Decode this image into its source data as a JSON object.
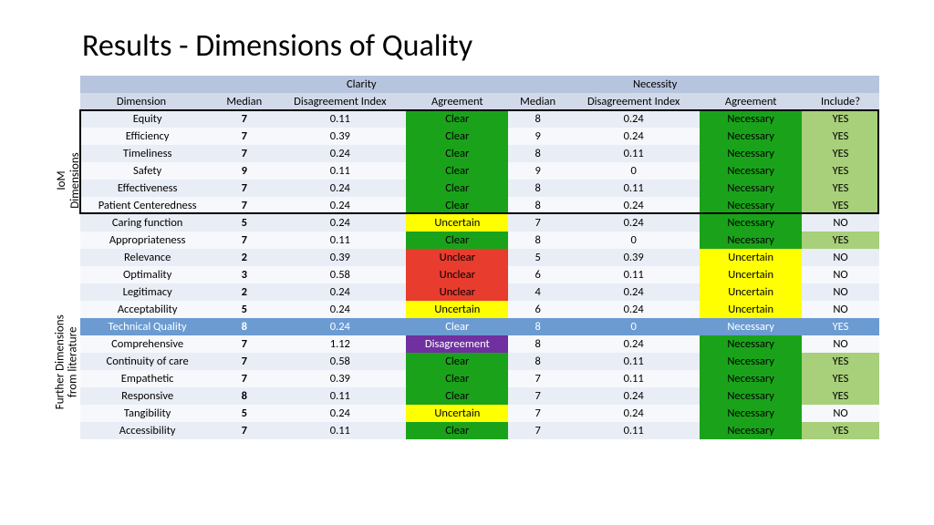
{
  "title": "Results - Dimensions of Quality",
  "side_labels": {
    "iom": "IoM\nDimensions",
    "further": "Further Dimensions\nfrom literature"
  },
  "headers": {
    "dimension": "Dimension",
    "clarity": "Clarity",
    "necessity": "Necessity",
    "median": "Median",
    "disagreement_index": "Disagreement Index",
    "agreement": "Agreement",
    "include": "Include?"
  },
  "status_labels": {
    "Clear": "Clear",
    "Unclear": "Unclear",
    "Uncertain": "Uncertain",
    "Disagreement": "Disagreement",
    "Necessary": "Necessary"
  },
  "colors": {
    "header_group_bg": "#b7c4de",
    "header_col_bg": "#d2daea",
    "row_even_bg": "#e9edf5",
    "row_odd_bg": "#f6f8fc",
    "clear_bg": "#1aa31a",
    "necessary_bg": "#1aa31a",
    "uncertain_bg": "#ffff00",
    "unclear_bg": "#e83c2e",
    "disagreement_bg": "#7030a0",
    "yes_bg": "#a8cf7a",
    "highlight_row_bg": "#6b9bd1"
  },
  "rows": [
    {
      "group": "iom",
      "dim": "Equity",
      "c_med": "7",
      "c_di": "0.11",
      "c_agr": "Clear",
      "n_med": "8",
      "n_di": "0.24",
      "n_agr": "Necessary",
      "inc": "YES"
    },
    {
      "group": "iom",
      "dim": "Efficiency",
      "c_med": "7",
      "c_di": "0.39",
      "c_agr": "Clear",
      "n_med": "9",
      "n_di": "0.24",
      "n_agr": "Necessary",
      "inc": "YES"
    },
    {
      "group": "iom",
      "dim": "Timeliness",
      "c_med": "7",
      "c_di": "0.24",
      "c_agr": "Clear",
      "n_med": "8",
      "n_di": "0.11",
      "n_agr": "Necessary",
      "inc": "YES"
    },
    {
      "group": "iom",
      "dim": "Safety",
      "c_med": "9",
      "c_di": "0.11",
      "c_agr": "Clear",
      "n_med": "9",
      "n_di": "0",
      "n_agr": "Necessary",
      "inc": "YES"
    },
    {
      "group": "iom",
      "dim": "Effectiveness",
      "c_med": "7",
      "c_di": "0.24",
      "c_agr": "Clear",
      "n_med": "8",
      "n_di": "0.11",
      "n_agr": "Necessary",
      "inc": "YES"
    },
    {
      "group": "iom",
      "dim": "Patient Centeredness",
      "c_med": "7",
      "c_di": "0.24",
      "c_agr": "Clear",
      "n_med": "8",
      "n_di": "0.24",
      "n_agr": "Necessary",
      "inc": "YES"
    },
    {
      "group": "further",
      "dim": "Caring function",
      "c_med": "5",
      "c_di": "0.24",
      "c_agr": "Uncertain",
      "n_med": "7",
      "n_di": "0.24",
      "n_agr": "Necessary",
      "inc": "NO"
    },
    {
      "group": "further",
      "dim": "Appropriateness",
      "c_med": "7",
      "c_di": "0.11",
      "c_agr": "Clear",
      "n_med": "8",
      "n_di": "0",
      "n_agr": "Necessary",
      "inc": "YES"
    },
    {
      "group": "further",
      "dim": "Relevance",
      "c_med": "2",
      "c_di": "0.39",
      "c_agr": "Unclear",
      "n_med": "5",
      "n_di": "0.39",
      "n_agr": "Uncertain",
      "inc": "NO"
    },
    {
      "group": "further",
      "dim": "Optimality",
      "c_med": "3",
      "c_di": "0.58",
      "c_agr": "Unclear",
      "n_med": "6",
      "n_di": "0.11",
      "n_agr": "Uncertain",
      "inc": "NO"
    },
    {
      "group": "further",
      "dim": "Legitimacy",
      "c_med": "2",
      "c_di": "0.24",
      "c_agr": "Unclear",
      "n_med": "4",
      "n_di": "0.24",
      "n_agr": "Uncertain",
      "inc": "NO"
    },
    {
      "group": "further",
      "dim": "Acceptability",
      "c_med": "5",
      "c_di": "0.24",
      "c_agr": "Uncertain",
      "n_med": "6",
      "n_di": "0.24",
      "n_agr": "Uncertain",
      "inc": "NO"
    },
    {
      "group": "further",
      "dim": "Technical Quality",
      "c_med": "8",
      "c_di": "0.24",
      "c_agr": "Clear",
      "n_med": "8",
      "n_di": "0",
      "n_agr": "Necessary",
      "inc": "YES",
      "hl": true
    },
    {
      "group": "further",
      "dim": "Comprehensive",
      "c_med": "7",
      "c_di": "1.12",
      "c_agr": "Disagreement",
      "n_med": "8",
      "n_di": "0.24",
      "n_agr": "Necessary",
      "inc": "NO"
    },
    {
      "group": "further",
      "dim": "Continuity of care",
      "c_med": "7",
      "c_di": "0.58",
      "c_agr": "Clear",
      "n_med": "8",
      "n_di": "0.11",
      "n_agr": "Necessary",
      "inc": "YES"
    },
    {
      "group": "further",
      "dim": "Empathetic",
      "c_med": "7",
      "c_di": "0.39",
      "c_agr": "Clear",
      "n_med": "7",
      "n_di": "0.11",
      "n_agr": "Necessary",
      "inc": "YES"
    },
    {
      "group": "further",
      "dim": "Responsive",
      "c_med": "8",
      "c_di": "0.11",
      "c_agr": "Clear",
      "n_med": "7",
      "n_di": "0.24",
      "n_agr": "Necessary",
      "inc": "YES"
    },
    {
      "group": "further",
      "dim": "Tangibility",
      "c_med": "5",
      "c_di": "0.24",
      "c_agr": "Uncertain",
      "n_med": "7",
      "n_di": "0.24",
      "n_agr": "Necessary",
      "inc": "NO"
    },
    {
      "group": "further",
      "dim": "Accessibility",
      "c_med": "7",
      "c_di": "0.11",
      "c_agr": "Clear",
      "n_med": "7",
      "n_di": "0.11",
      "n_agr": "Necessary",
      "inc": "YES"
    }
  ]
}
